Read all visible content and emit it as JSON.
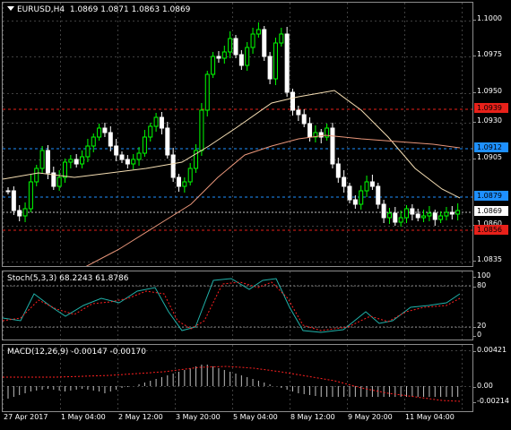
{
  "main": {
    "title_symbol": "EURUSD,H4",
    "title_ohlc": "1.0869 1.0871 1.0863 1.0869",
    "price_ticks": [
      "1.1000",
      "1.0975",
      "1.0950",
      "1.0930",
      "1.0905",
      "1.0860",
      "1.0835"
    ],
    "level_tags": [
      {
        "label": "1.0939",
        "style": "red"
      },
      {
        "label": "1.0912",
        "style": "blue"
      },
      {
        "label": "1.0879",
        "style": "blue"
      },
      {
        "label": "1.0869",
        "style": "white"
      },
      {
        "label": "1.0856",
        "style": "red"
      }
    ],
    "colors": {
      "bull": "#00ff00",
      "bear": "#ffffff",
      "bull_fill": "#000000",
      "ma_fast": "#f5deb3",
      "ma_slow": "#e9967a",
      "grid": "#404040",
      "red_line": "#e8211a",
      "blue_line": "#1e90ff"
    }
  },
  "stoch": {
    "title": "Stoch(5,3,3) 68.2243 61.8786",
    "ticks": [
      "100",
      "80",
      "20",
      "0"
    ],
    "colors": {
      "main": "#20b2aa",
      "signal": "#ff2020"
    }
  },
  "macd": {
    "title": "MACD(12,26,9) -0.00147 -0.00170",
    "ticks": [
      "0.00421",
      "0.00",
      "-0.00214"
    ],
    "colors": {
      "hist": "#c0c0c0",
      "signal": "#ff2020"
    }
  },
  "time_axis": [
    "27 Apr 2017",
    "1 May 04:00",
    "2 May 12:00",
    "3 May 20:00",
    "5 May 04:00",
    "8 May 12:00",
    "9 May 20:00",
    "11 May 04:00"
  ]
}
